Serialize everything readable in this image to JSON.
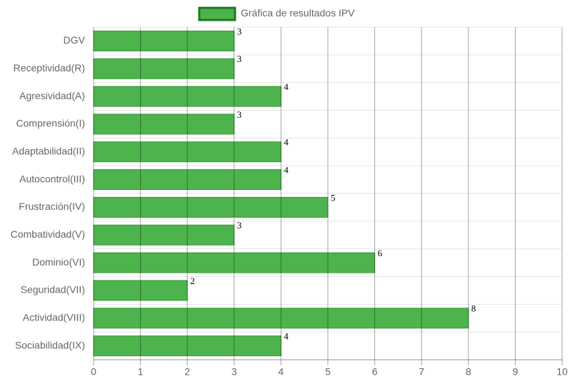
{
  "chart_data": {
    "type": "bar",
    "orientation": "horizontal",
    "categories": [
      "DGV",
      "Receptividad(R)",
      "Agresividad(A)",
      "Comprensión(I)",
      "Adaptabilidad(II)",
      "Autocontrol(III)",
      "Frustración(IV)",
      "Combatividad(V)",
      "Dominio(VI)",
      "Seguridad(VII)",
      "Actividad(VIII)",
      "Sociabilidad(IX)"
    ],
    "series": [
      {
        "name": "Gráfica de resultados IPV",
        "color": "#4db34d",
        "values": [
          3,
          3,
          4,
          3,
          4,
          4,
          5,
          3,
          6,
          2,
          8,
          4
        ]
      }
    ],
    "xlim": [
      0,
      10
    ],
    "xticks": [
      0,
      1,
      2,
      3,
      4,
      5,
      6,
      7,
      8,
      9,
      10
    ],
    "grid": true,
    "legend": "top"
  }
}
